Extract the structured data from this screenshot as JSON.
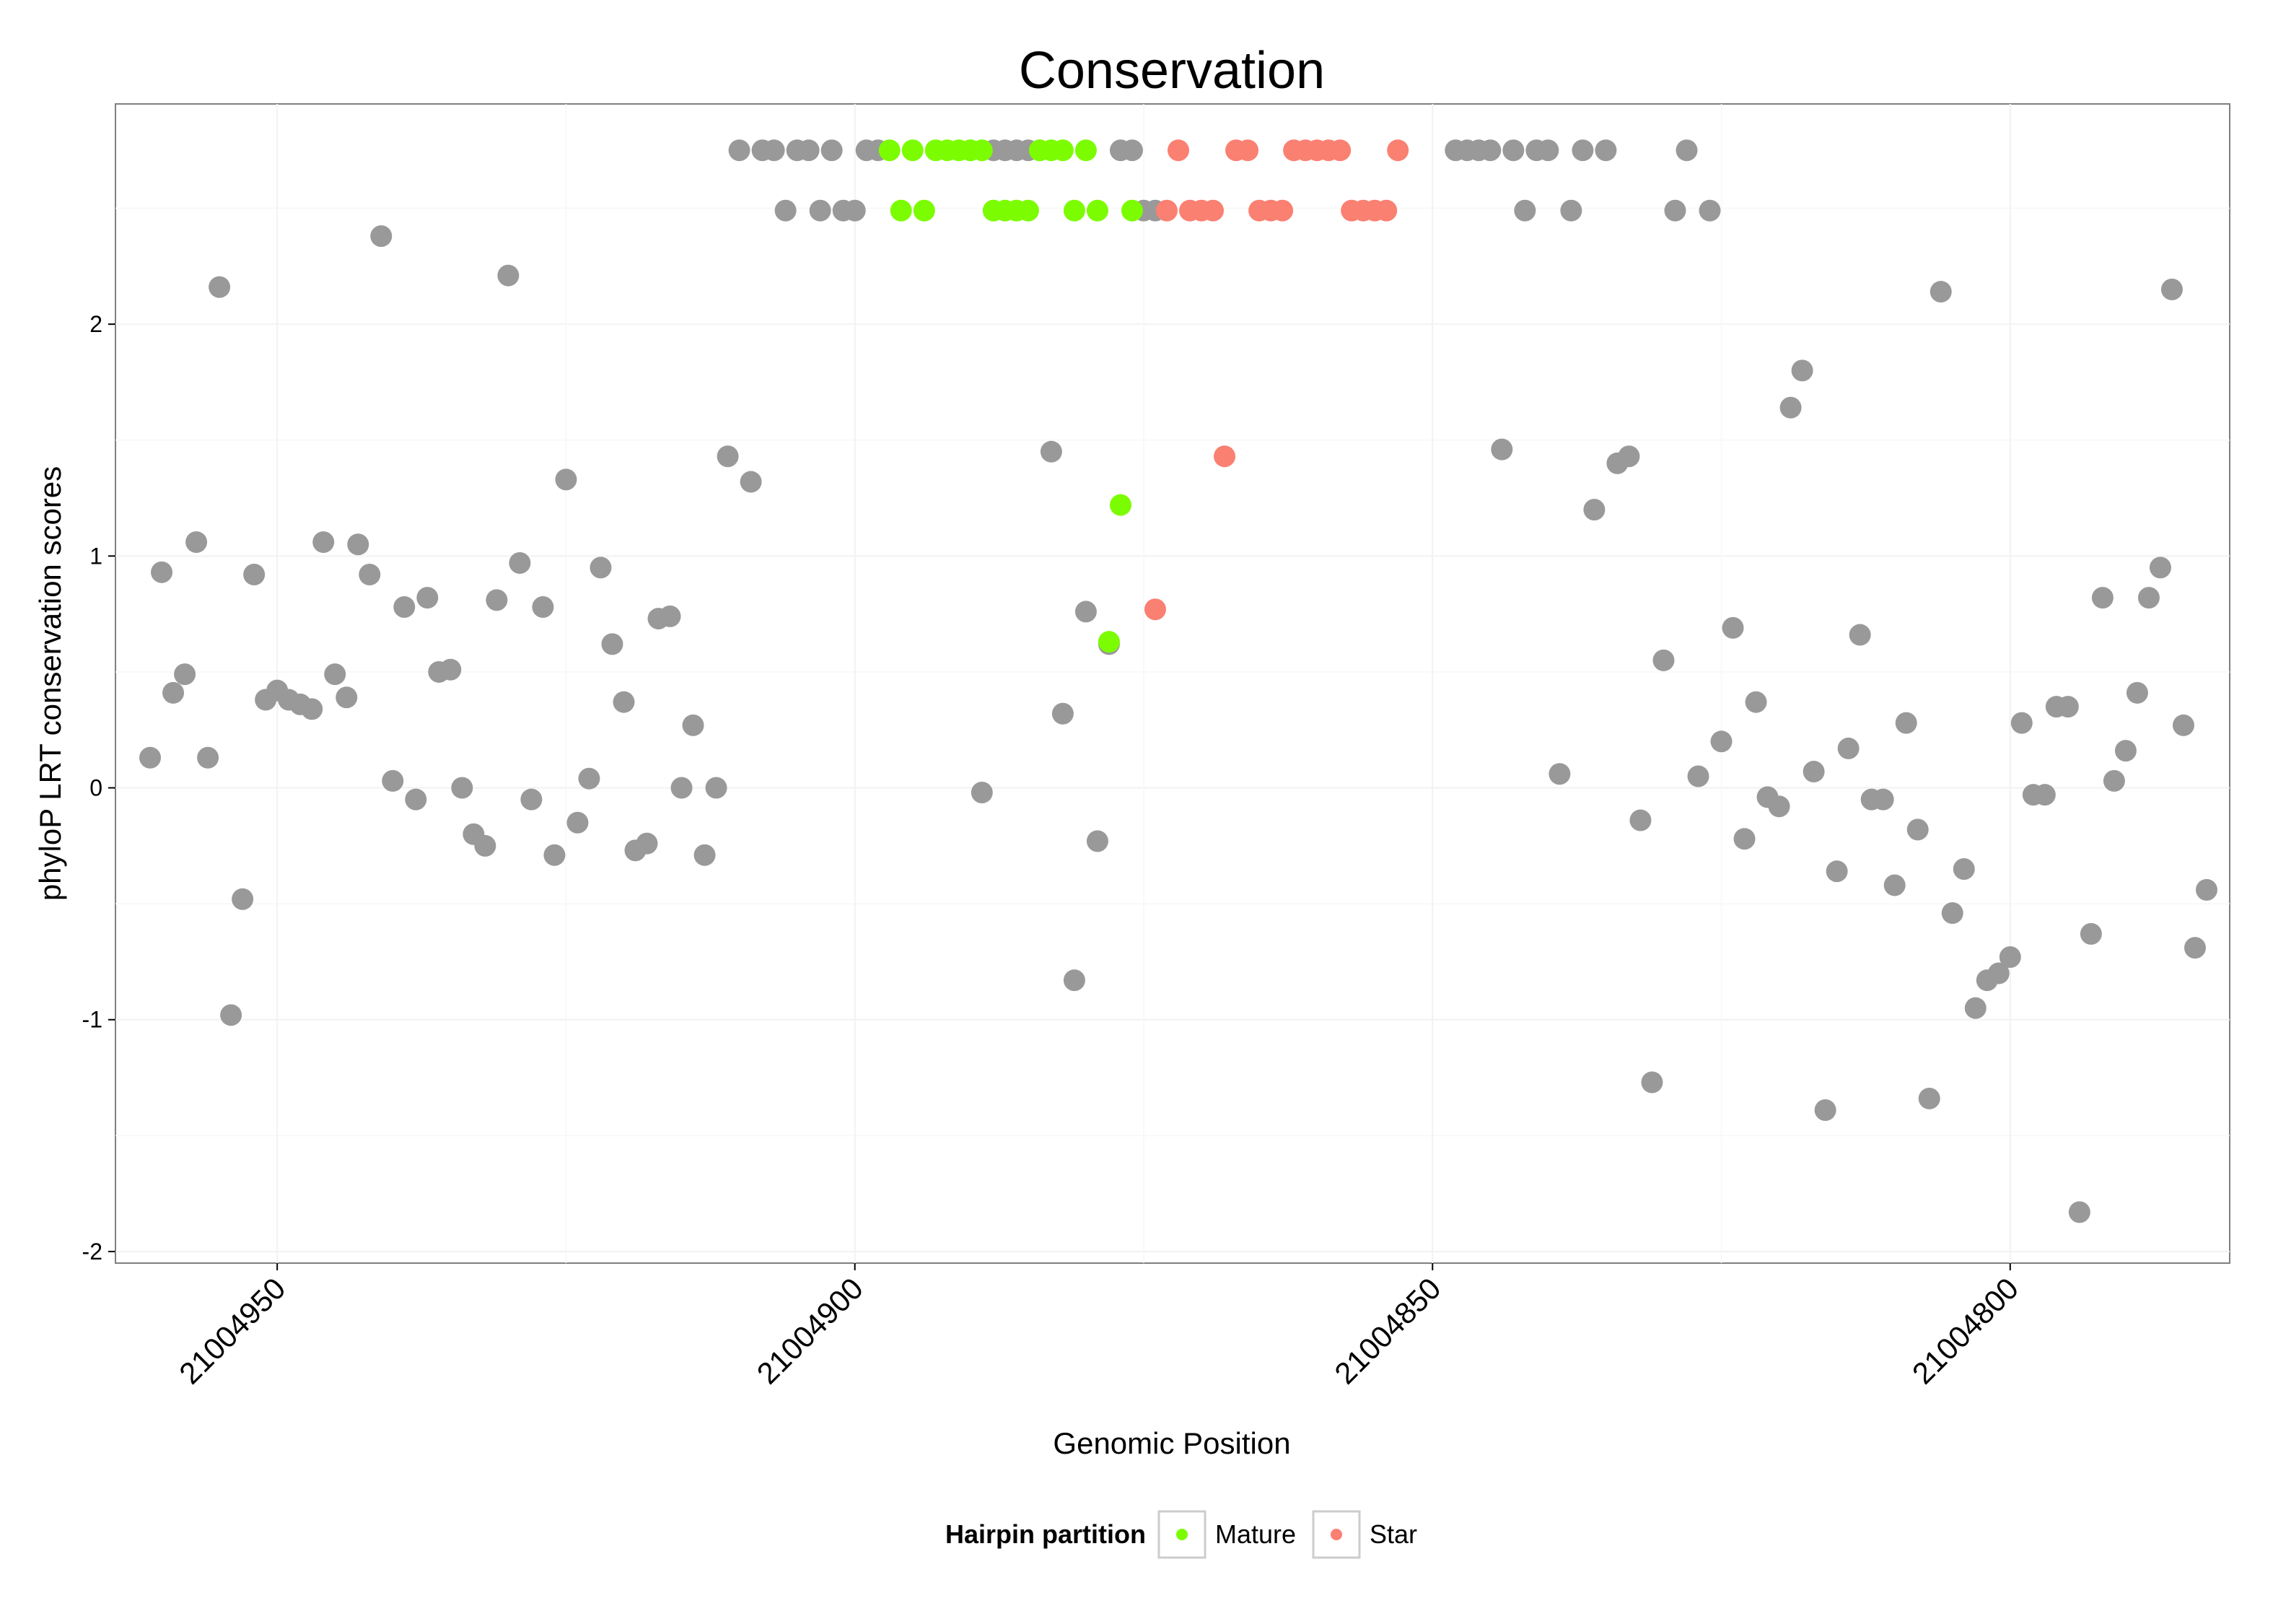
{
  "chart_data": {
    "type": "scatter",
    "title": "Conservation",
    "xlabel": "Genomic Position",
    "ylabel": "phyloP LRT conservation scores",
    "x_reversed": true,
    "xlim": [
      21004964,
      21004781
    ],
    "ylim": [
      -2.05,
      2.95
    ],
    "x_ticks": [
      21004950,
      21004900,
      21004850,
      21004800
    ],
    "x_tick_labels": [
      "21004950",
      "21004900",
      "21004850",
      "21004800"
    ],
    "y_ticks": [
      -2,
      -1,
      0,
      1,
      2
    ],
    "y_tick_labels": [
      "-2",
      "-1",
      "0",
      "1",
      "2"
    ],
    "legend": {
      "title": "Hairpin partition",
      "position": "bottom",
      "entries": [
        {
          "label": "Mature",
          "color": "#7CFC00"
        },
        {
          "label": "Star",
          "color": "#FA8072"
        }
      ]
    },
    "colors": {
      "other": "#999999",
      "Mature": "#7CFC00",
      "Star": "#FA8072"
    },
    "series": [
      {
        "name": "Other",
        "color": "#999999",
        "points": [
          [
            21004961,
            0.13
          ],
          [
            21004960,
            0.93
          ],
          [
            21004959,
            0.41
          ],
          [
            21004958,
            0.49
          ],
          [
            21004957,
            1.06
          ],
          [
            21004956,
            0.13
          ],
          [
            21004955,
            2.16
          ],
          [
            21004954,
            -0.98
          ],
          [
            21004953,
            -0.48
          ],
          [
            21004952,
            0.92
          ],
          [
            21004951,
            0.38
          ],
          [
            21004950,
            0.42
          ],
          [
            21004949,
            0.38
          ],
          [
            21004948,
            0.36
          ],
          [
            21004947,
            0.34
          ],
          [
            21004946,
            1.06
          ],
          [
            21004945,
            0.49
          ],
          [
            21004944,
            0.39
          ],
          [
            21004943,
            1.05
          ],
          [
            21004942,
            0.92
          ],
          [
            21004941,
            2.38
          ],
          [
            21004940,
            0.03
          ],
          [
            21004939,
            0.78
          ],
          [
            21004938,
            -0.05
          ],
          [
            21004937,
            0.82
          ],
          [
            21004936,
            0.5
          ],
          [
            21004935,
            0.51
          ],
          [
            21004934,
            0.0
          ],
          [
            21004933,
            -0.2
          ],
          [
            21004932,
            -0.25
          ],
          [
            21004931,
            0.81
          ],
          [
            21004930,
            2.21
          ],
          [
            21004929,
            0.97
          ],
          [
            21004928,
            -0.05
          ],
          [
            21004927,
            0.78
          ],
          [
            21004926,
            -0.29
          ],
          [
            21004925,
            1.33
          ],
          [
            21004924,
            -0.15
          ],
          [
            21004923,
            0.04
          ],
          [
            21004922,
            0.95
          ],
          [
            21004921,
            0.62
          ],
          [
            21004920,
            0.37
          ],
          [
            21004919,
            -0.27
          ],
          [
            21004918,
            -0.24
          ],
          [
            21004917,
            0.73
          ],
          [
            21004916,
            0.74
          ],
          [
            21004915,
            0.0
          ],
          [
            21004914,
            0.27
          ],
          [
            21004913,
            -0.29
          ],
          [
            21004912,
            0.0
          ],
          [
            21004911,
            1.43
          ],
          [
            21004910,
            2.75
          ],
          [
            21004909,
            1.32
          ],
          [
            21004908,
            2.75
          ],
          [
            21004907,
            2.75
          ],
          [
            21004906,
            2.49
          ],
          [
            21004905,
            2.75
          ],
          [
            21004904,
            2.75
          ],
          [
            21004903,
            2.49
          ],
          [
            21004902,
            2.75
          ],
          [
            21004901,
            2.49
          ],
          [
            21004900,
            2.49
          ],
          [
            21004899,
            2.75
          ],
          [
            21004898,
            2.75
          ],
          [
            21004889,
            -0.02
          ],
          [
            21004888,
            2.75
          ],
          [
            21004887,
            2.75
          ],
          [
            21004886,
            2.75
          ],
          [
            21004885,
            2.75
          ],
          [
            21004884,
            2.75
          ],
          [
            21004883,
            1.45
          ],
          [
            21004882,
            0.32
          ],
          [
            21004881,
            -0.83
          ],
          [
            21004880,
            0.76
          ],
          [
            21004879,
            -0.23
          ],
          [
            21004878,
            0.62
          ],
          [
            21004877,
            2.75
          ],
          [
            21004876,
            2.75
          ],
          [
            21004875,
            2.49
          ],
          [
            21004874,
            2.49
          ],
          [
            21004848,
            2.75
          ],
          [
            21004847,
            2.75
          ],
          [
            21004846,
            2.75
          ],
          [
            21004845,
            2.75
          ],
          [
            21004844,
            1.46
          ],
          [
            21004843,
            2.75
          ],
          [
            21004842,
            2.49
          ],
          [
            21004841,
            2.75
          ],
          [
            21004840,
            2.75
          ],
          [
            21004839,
            0.06
          ],
          [
            21004838,
            2.49
          ],
          [
            21004837,
            2.75
          ],
          [
            21004836,
            1.2
          ],
          [
            21004835,
            2.75
          ],
          [
            21004834,
            1.4
          ],
          [
            21004833,
            1.43
          ],
          [
            21004832,
            -0.14
          ],
          [
            21004831,
            -1.27
          ],
          [
            21004830,
            0.55
          ],
          [
            21004829,
            2.49
          ],
          [
            21004828,
            2.75
          ],
          [
            21004827,
            0.05
          ],
          [
            21004826,
            2.49
          ],
          [
            21004825,
            0.2
          ],
          [
            21004824,
            0.69
          ],
          [
            21004823,
            -0.22
          ],
          [
            21004822,
            0.37
          ],
          [
            21004821,
            -0.04
          ],
          [
            21004820,
            -0.08
          ],
          [
            21004819,
            1.64
          ],
          [
            21004818,
            1.8
          ],
          [
            21004817,
            0.07
          ],
          [
            21004816,
            -1.39
          ],
          [
            21004815,
            -0.36
          ],
          [
            21004814,
            0.17
          ],
          [
            21004813,
            0.66
          ],
          [
            21004812,
            -0.05
          ],
          [
            21004811,
            -0.05
          ],
          [
            21004810,
            -0.42
          ],
          [
            21004809,
            0.28
          ],
          [
            21004808,
            -0.18
          ],
          [
            21004807,
            -1.34
          ],
          [
            21004806,
            2.14
          ],
          [
            21004805,
            -0.54
          ],
          [
            21004804,
            -0.35
          ],
          [
            21004803,
            -0.95
          ],
          [
            21004802,
            -0.83
          ],
          [
            21004801,
            -0.8
          ],
          [
            21004800,
            -0.73
          ],
          [
            21004799,
            0.28
          ],
          [
            21004798,
            -0.03
          ],
          [
            21004797,
            -0.03
          ],
          [
            21004796,
            0.35
          ],
          [
            21004795,
            0.35
          ],
          [
            21004794,
            -1.83
          ],
          [
            21004793,
            -0.63
          ],
          [
            21004792,
            0.82
          ],
          [
            21004791,
            0.03
          ],
          [
            21004790,
            0.16
          ],
          [
            21004789,
            0.41
          ],
          [
            21004788,
            0.82
          ],
          [
            21004787,
            0.95
          ],
          [
            21004786,
            2.15
          ],
          [
            21004785,
            0.27
          ],
          [
            21004784,
            -0.69
          ],
          [
            21004783,
            -0.44
          ]
        ]
      },
      {
        "name": "Mature",
        "color": "#7CFC00",
        "points": [
          [
            21004897,
            2.75
          ],
          [
            21004896,
            2.49
          ],
          [
            21004895,
            2.75
          ],
          [
            21004894,
            2.49
          ],
          [
            21004893,
            2.75
          ],
          [
            21004892,
            2.75
          ],
          [
            21004891,
            2.75
          ],
          [
            21004890,
            2.75
          ],
          [
            21004890,
            2.75
          ],
          [
            21004889,
            2.75
          ],
          [
            21004888,
            2.49
          ],
          [
            21004887,
            2.49
          ],
          [
            21004886,
            2.49
          ],
          [
            21004885,
            2.49
          ],
          [
            21004884,
            2.75
          ],
          [
            21004883,
            2.75
          ],
          [
            21004882,
            2.75
          ],
          [
            21004881,
            2.49
          ],
          [
            21004880,
            2.75
          ],
          [
            21004879,
            2.49
          ],
          [
            21004878,
            0.63
          ],
          [
            21004877,
            1.22
          ],
          [
            21004876,
            2.49
          ]
        ]
      },
      {
        "name": "Star",
        "color": "#FA8072",
        "points": [
          [
            21004874,
            0.77
          ],
          [
            21004873,
            2.49
          ],
          [
            21004872,
            2.75
          ],
          [
            21004871,
            2.49
          ],
          [
            21004870,
            2.49
          ],
          [
            21004869,
            2.49
          ],
          [
            21004868,
            1.43
          ],
          [
            21004867,
            2.75
          ],
          [
            21004866,
            2.75
          ],
          [
            21004865,
            2.49
          ],
          [
            21004864,
            2.49
          ],
          [
            21004863,
            2.49
          ],
          [
            21004862,
            2.75
          ],
          [
            21004861,
            2.75
          ],
          [
            21004860,
            2.75
          ],
          [
            21004859,
            2.75
          ],
          [
            21004858,
            2.75
          ],
          [
            21004857,
            2.49
          ],
          [
            21004856,
            2.49
          ],
          [
            21004855,
            2.49
          ],
          [
            21004854,
            2.49
          ],
          [
            21004853,
            2.75
          ]
        ]
      }
    ]
  }
}
